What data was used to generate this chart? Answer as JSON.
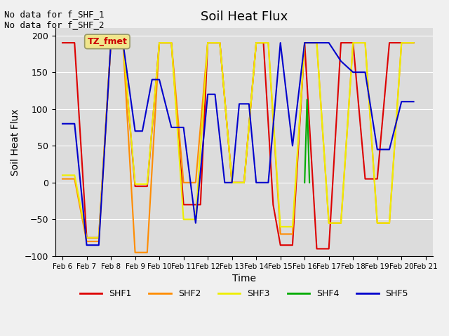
{
  "title": "Soil Heat Flux",
  "xlabel": "Time",
  "ylabel": "Soil Heat Flux",
  "ylim": [
    -100,
    210
  ],
  "yticks": [
    -100,
    -50,
    0,
    50,
    100,
    150,
    200
  ],
  "background_color": "#dcdcdc",
  "fig_color": "#f0f0f0",
  "annotation_text": "No data for f_SHF_1\nNo data for f_SHF_2",
  "legend_box_text": "TZ_fmet",
  "legend_box_color": "#f0e68c",
  "legend_box_text_color": "#cc0000",
  "series": {
    "SHF1": {
      "color": "#dd0000",
      "x": [
        6.0,
        6.5,
        7.0,
        7.5,
        8.0,
        8.5,
        9.0,
        9.5,
        10.0,
        10.5,
        11.0,
        11.3,
        11.7,
        12.0,
        12.5,
        13.0,
        13.5,
        14.0,
        14.3,
        14.7,
        15.0,
        15.5,
        16.0,
        16.5,
        17.0,
        17.5,
        18.0,
        18.5,
        19.0,
        19.5,
        20.0,
        20.5
      ],
      "y": [
        190,
        190,
        -75,
        -75,
        190,
        190,
        -5,
        -5,
        190,
        190,
        -30,
        -30,
        -30,
        190,
        190,
        0,
        0,
        190,
        190,
        -30,
        -85,
        -85,
        190,
        -90,
        -90,
        190,
        190,
        5,
        5,
        190,
        190,
        190
      ]
    },
    "SHF2": {
      "color": "#ff8c00",
      "x": [
        6.0,
        6.5,
        7.0,
        7.5,
        8.0,
        8.5,
        9.0,
        9.5,
        10.0,
        10.5,
        11.0,
        11.5,
        12.0,
        12.5,
        13.0,
        13.5,
        14.0,
        14.5,
        15.0,
        15.5,
        16.0,
        16.5,
        17.0,
        17.5,
        18.0,
        18.5,
        19.0,
        19.5,
        20.0,
        20.5
      ],
      "y": [
        5,
        5,
        -80,
        -80,
        190,
        190,
        -95,
        -95,
        190,
        190,
        0,
        0,
        190,
        190,
        0,
        0,
        190,
        190,
        -70,
        -70,
        190,
        190,
        -55,
        -55,
        190,
        190,
        -55,
        -55,
        190,
        190
      ]
    },
    "SHF3": {
      "color": "#eeee00",
      "x": [
        6.0,
        6.5,
        7.0,
        7.5,
        8.0,
        8.5,
        9.0,
        9.5,
        10.0,
        10.5,
        11.0,
        11.5,
        12.0,
        12.5,
        13.0,
        13.5,
        14.0,
        14.5,
        15.0,
        15.5,
        16.0,
        16.5,
        17.0,
        17.5,
        18.0,
        18.5,
        19.0,
        19.5,
        20.0,
        20.5
      ],
      "y": [
        10,
        10,
        -75,
        -75,
        190,
        190,
        -2,
        -2,
        190,
        190,
        -50,
        -50,
        190,
        190,
        0,
        0,
        190,
        190,
        -60,
        -60,
        190,
        190,
        -55,
        -55,
        190,
        190,
        -55,
        -55,
        190,
        190
      ]
    },
    "SHF4": {
      "color": "#00aa00",
      "x": [
        16.0,
        16.1,
        16.2
      ],
      "y": [
        0,
        113,
        0
      ]
    },
    "SHF5": {
      "color": "#0000cc",
      "x": [
        6.0,
        6.5,
        7.0,
        7.5,
        8.0,
        8.5,
        9.0,
        9.3,
        9.7,
        10.0,
        10.5,
        11.0,
        11.5,
        12.0,
        12.3,
        12.7,
        13.0,
        13.3,
        13.7,
        14.0,
        14.5,
        15.0,
        15.5,
        16.0,
        16.5,
        17.0,
        17.5,
        18.0,
        18.5,
        19.0,
        19.5,
        20.0,
        20.5
      ],
      "y": [
        80,
        80,
        -85,
        -85,
        190,
        190,
        70,
        70,
        140,
        140,
        75,
        75,
        -55,
        120,
        120,
        0,
        0,
        107,
        107,
        0,
        0,
        190,
        50,
        190,
        190,
        190,
        165,
        150,
        150,
        45,
        45,
        110,
        110
      ]
    }
  },
  "xtick_labels": [
    "Feb 6",
    "Feb 7",
    "Feb 8",
    "Feb 9",
    "Feb 10",
    "Feb 11",
    "Feb 12",
    "Feb 13",
    "Feb 14",
    "Feb 15",
    "Feb 16",
    "Feb 17",
    "Feb 18",
    "Feb 19",
    "Feb 20",
    "Feb 21"
  ],
  "xtick_positions": [
    6,
    7,
    8,
    9,
    10,
    11,
    12,
    13,
    14,
    15,
    16,
    17,
    18,
    19,
    20,
    21
  ]
}
